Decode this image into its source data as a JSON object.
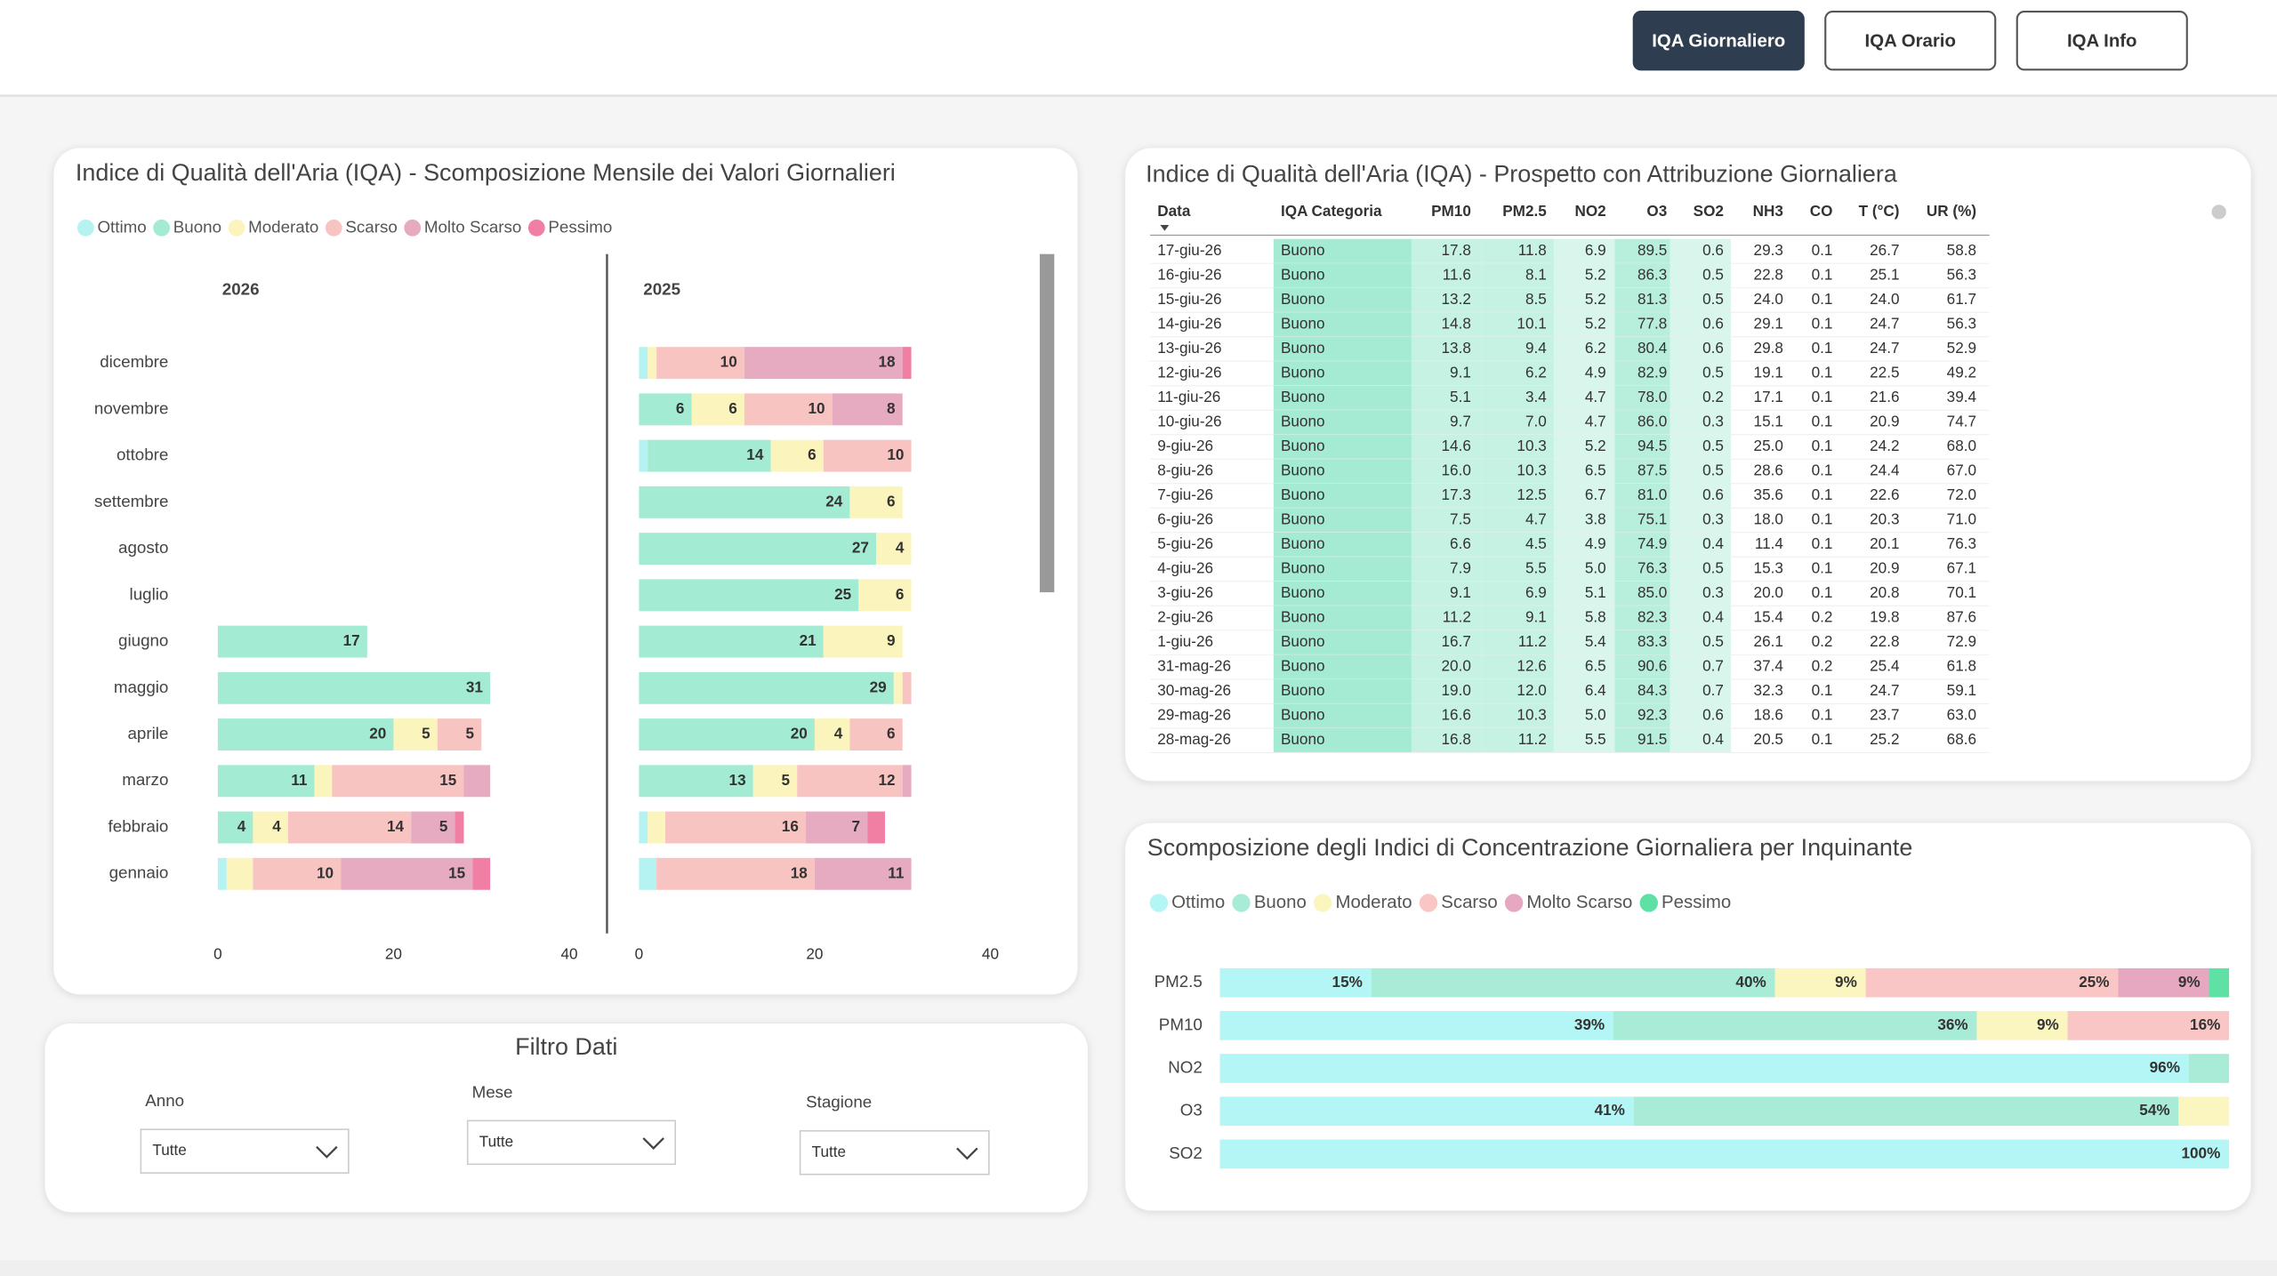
{
  "header": {
    "buttons": [
      "IQA Giornaliero",
      "IQA Orario",
      "IQA Info"
    ],
    "active": 0
  },
  "chart_data": [
    {
      "type": "bar",
      "orientation": "horizontal",
      "stacked": true,
      "title": "Indice di Qualità dell'Aria (IQA) - Scomposizione Mensile dei Valori Giornalieri",
      "categories": [
        "dicembre",
        "novembre",
        "ottobre",
        "settembre",
        "agosto",
        "luglio",
        "giugno",
        "maggio",
        "aprile",
        "marzo",
        "febbraio",
        "gennaio"
      ],
      "xlim": [
        0,
        40
      ],
      "xticks": [
        0,
        20,
        40
      ],
      "series": [
        {
          "name": "Ottimo",
          "color": "#b4f3f1"
        },
        {
          "name": "Buono",
          "color": "#a3ebd3"
        },
        {
          "name": "Moderato",
          "color": "#fbf5bd"
        },
        {
          "name": "Scarso",
          "color": "#f8c4c2"
        },
        {
          "name": "Molto Scarso",
          "color": "#e6aac1"
        },
        {
          "name": "Pessimo",
          "color": "#f17ea3"
        }
      ],
      "panels": [
        {
          "title": "2026",
          "series": [
            {
              "values": [
                null,
                null,
                null,
                null,
                null,
                null,
                0,
                0,
                0,
                0,
                0,
                1
              ]
            },
            {
              "values": [
                null,
                null,
                null,
                null,
                null,
                null,
                17,
                31,
                20,
                11,
                4,
                0
              ]
            },
            {
              "values": [
                null,
                null,
                null,
                null,
                null,
                null,
                0,
                0,
                5,
                2,
                4,
                3
              ]
            },
            {
              "values": [
                null,
                null,
                null,
                null,
                null,
                null,
                0,
                0,
                5,
                15,
                14,
                10
              ]
            },
            {
              "values": [
                null,
                null,
                null,
                null,
                null,
                null,
                0,
                0,
                0,
                3,
                5,
                15
              ]
            },
            {
              "values": [
                null,
                null,
                null,
                null,
                null,
                null,
                0,
                0,
                0,
                0,
                1,
                2
              ]
            }
          ]
        },
        {
          "title": "2025",
          "series": [
            {
              "values": [
                1,
                0,
                1,
                0,
                0,
                0,
                0,
                0,
                0,
                0,
                1,
                2
              ]
            },
            {
              "values": [
                0,
                6,
                14,
                24,
                27,
                25,
                21,
                29,
                20,
                13,
                0,
                0
              ]
            },
            {
              "values": [
                1,
                6,
                6,
                6,
                4,
                6,
                9,
                1,
                4,
                5,
                2,
                0
              ]
            },
            {
              "values": [
                10,
                10,
                10,
                0,
                0,
                0,
                0,
                1,
                6,
                12,
                16,
                18
              ]
            },
            {
              "values": [
                18,
                8,
                0,
                0,
                0,
                0,
                0,
                0,
                0,
                1,
                7,
                11
              ]
            },
            {
              "values": [
                1,
                0,
                0,
                0,
                0,
                0,
                0,
                0,
                0,
                0,
                2,
                0
              ]
            }
          ]
        }
      ]
    },
    {
      "type": "bar",
      "orientation": "horizontal",
      "stacked": true,
      "title": "Scomposizione degli Indici di Concentrazione Giornaliera per Inquinante",
      "categories": [
        "PM2.5",
        "PM10",
        "NO2",
        "O3",
        "SO2"
      ],
      "xlim": [
        0,
        100
      ],
      "series": [
        {
          "name": "Ottimo",
          "color": "#b4f5f5",
          "values": [
            15,
            39,
            96,
            41,
            100
          ],
          "value_labels": [
            "15%",
            "39%",
            "96%",
            "41%",
            "100%"
          ]
        },
        {
          "name": "Buono",
          "color": "#a8ecd8",
          "values": [
            40,
            36,
            4,
            54,
            0
          ],
          "value_labels": [
            "40%",
            "36%",
            null,
            "54%",
            null
          ]
        },
        {
          "name": "Moderato",
          "color": "#fbf6bf",
          "values": [
            9,
            9,
            0,
            5,
            0
          ],
          "value_labels": [
            "9%",
            "9%",
            null,
            null,
            null
          ]
        },
        {
          "name": "Scarso",
          "color": "#f9c5c5",
          "values": [
            25,
            16,
            0,
            0,
            0
          ],
          "value_labels": [
            "25%",
            "16%",
            null,
            null,
            null
          ]
        },
        {
          "name": "Molto Scarso",
          "color": "#e6a8c0",
          "values": [
            9,
            0,
            0,
            0,
            0
          ],
          "value_labels": [
            "9%",
            null,
            null,
            null,
            null
          ]
        },
        {
          "name": "Pessimo",
          "color": "#5fe0a5",
          "values": [
            2,
            0,
            0,
            0,
            0
          ],
          "value_labels": [
            null,
            null,
            null,
            null,
            null
          ]
        }
      ]
    }
  ],
  "table": {
    "title": "Indice di Qualità dell'Aria (IQA) - Prospetto con Attribuzione Giornaliera",
    "columns": [
      "Data",
      "IQA Categoria",
      "PM10",
      "PM2.5",
      "NO2",
      "O3",
      "SO2",
      "NH3",
      "CO",
      "T (°C)",
      "UR (%)"
    ],
    "rows": [
      [
        "17-giu-26",
        "Buono",
        "17.8",
        "11.8",
        "6.9",
        "89.5",
        "0.6",
        "29.3",
        "0.1",
        "26.7",
        "58.8"
      ],
      [
        "16-giu-26",
        "Buono",
        "11.6",
        "8.1",
        "5.2",
        "86.3",
        "0.5",
        "22.8",
        "0.1",
        "25.1",
        "56.3"
      ],
      [
        "15-giu-26",
        "Buono",
        "13.2",
        "8.5",
        "5.2",
        "81.3",
        "0.5",
        "24.0",
        "0.1",
        "24.0",
        "61.7"
      ],
      [
        "14-giu-26",
        "Buono",
        "14.8",
        "10.1",
        "5.2",
        "77.8",
        "0.6",
        "29.1",
        "0.1",
        "24.7",
        "56.3"
      ],
      [
        "13-giu-26",
        "Buono",
        "13.8",
        "9.4",
        "6.2",
        "80.4",
        "0.6",
        "29.8",
        "0.1",
        "24.7",
        "52.9"
      ],
      [
        "12-giu-26",
        "Buono",
        "9.1",
        "6.2",
        "4.9",
        "82.9",
        "0.5",
        "19.1",
        "0.1",
        "22.5",
        "49.2"
      ],
      [
        "11-giu-26",
        "Buono",
        "5.1",
        "3.4",
        "4.7",
        "78.0",
        "0.2",
        "17.1",
        "0.1",
        "21.6",
        "39.4"
      ],
      [
        "10-giu-26",
        "Buono",
        "9.7",
        "7.0",
        "4.7",
        "86.0",
        "0.3",
        "15.1",
        "0.1",
        "20.9",
        "74.7"
      ],
      [
        "9-giu-26",
        "Buono",
        "14.6",
        "10.3",
        "5.2",
        "94.5",
        "0.5",
        "25.0",
        "0.1",
        "24.2",
        "68.0"
      ],
      [
        "8-giu-26",
        "Buono",
        "16.0",
        "10.3",
        "6.5",
        "87.5",
        "0.5",
        "28.6",
        "0.1",
        "24.4",
        "67.0"
      ],
      [
        "7-giu-26",
        "Buono",
        "17.3",
        "12.5",
        "6.7",
        "81.0",
        "0.6",
        "35.6",
        "0.1",
        "22.6",
        "72.0"
      ],
      [
        "6-giu-26",
        "Buono",
        "7.5",
        "4.7",
        "3.8",
        "75.1",
        "0.3",
        "18.0",
        "0.1",
        "20.3",
        "71.0"
      ],
      [
        "5-giu-26",
        "Buono",
        "6.6",
        "4.5",
        "4.9",
        "74.9",
        "0.4",
        "11.4",
        "0.1",
        "20.1",
        "76.3"
      ],
      [
        "4-giu-26",
        "Buono",
        "7.9",
        "5.5",
        "5.0",
        "76.3",
        "0.5",
        "15.3",
        "0.1",
        "20.9",
        "67.1"
      ],
      [
        "3-giu-26",
        "Buono",
        "9.1",
        "6.9",
        "5.1",
        "85.0",
        "0.3",
        "20.0",
        "0.1",
        "20.8",
        "70.1"
      ],
      [
        "2-giu-26",
        "Buono",
        "11.2",
        "9.1",
        "5.8",
        "82.3",
        "0.4",
        "15.4",
        "0.2",
        "19.8",
        "87.6"
      ],
      [
        "1-giu-26",
        "Buono",
        "16.7",
        "11.2",
        "5.4",
        "83.3",
        "0.5",
        "26.1",
        "0.2",
        "22.8",
        "72.9"
      ],
      [
        "31-mag-26",
        "Buono",
        "20.0",
        "12.6",
        "6.5",
        "90.6",
        "0.7",
        "37.4",
        "0.2",
        "25.4",
        "61.8"
      ],
      [
        "30-mag-26",
        "Buono",
        "19.0",
        "12.0",
        "6.4",
        "84.3",
        "0.7",
        "32.3",
        "0.1",
        "24.7",
        "59.1"
      ],
      [
        "29-mag-26",
        "Buono",
        "16.6",
        "10.3",
        "5.0",
        "92.3",
        "0.6",
        "18.6",
        "0.1",
        "23.7",
        "63.0"
      ],
      [
        "28-mag-26",
        "Buono",
        "16.8",
        "11.2",
        "5.5",
        "91.5",
        "0.4",
        "20.5",
        "0.1",
        "25.2",
        "68.6"
      ]
    ]
  },
  "filter": {
    "title": "Filtro Dati",
    "fields": [
      {
        "label": "Anno",
        "value": "Tutte"
      },
      {
        "label": "Mese",
        "value": "Tutte"
      },
      {
        "label": "Stagione",
        "value": "Tutte"
      }
    ]
  }
}
